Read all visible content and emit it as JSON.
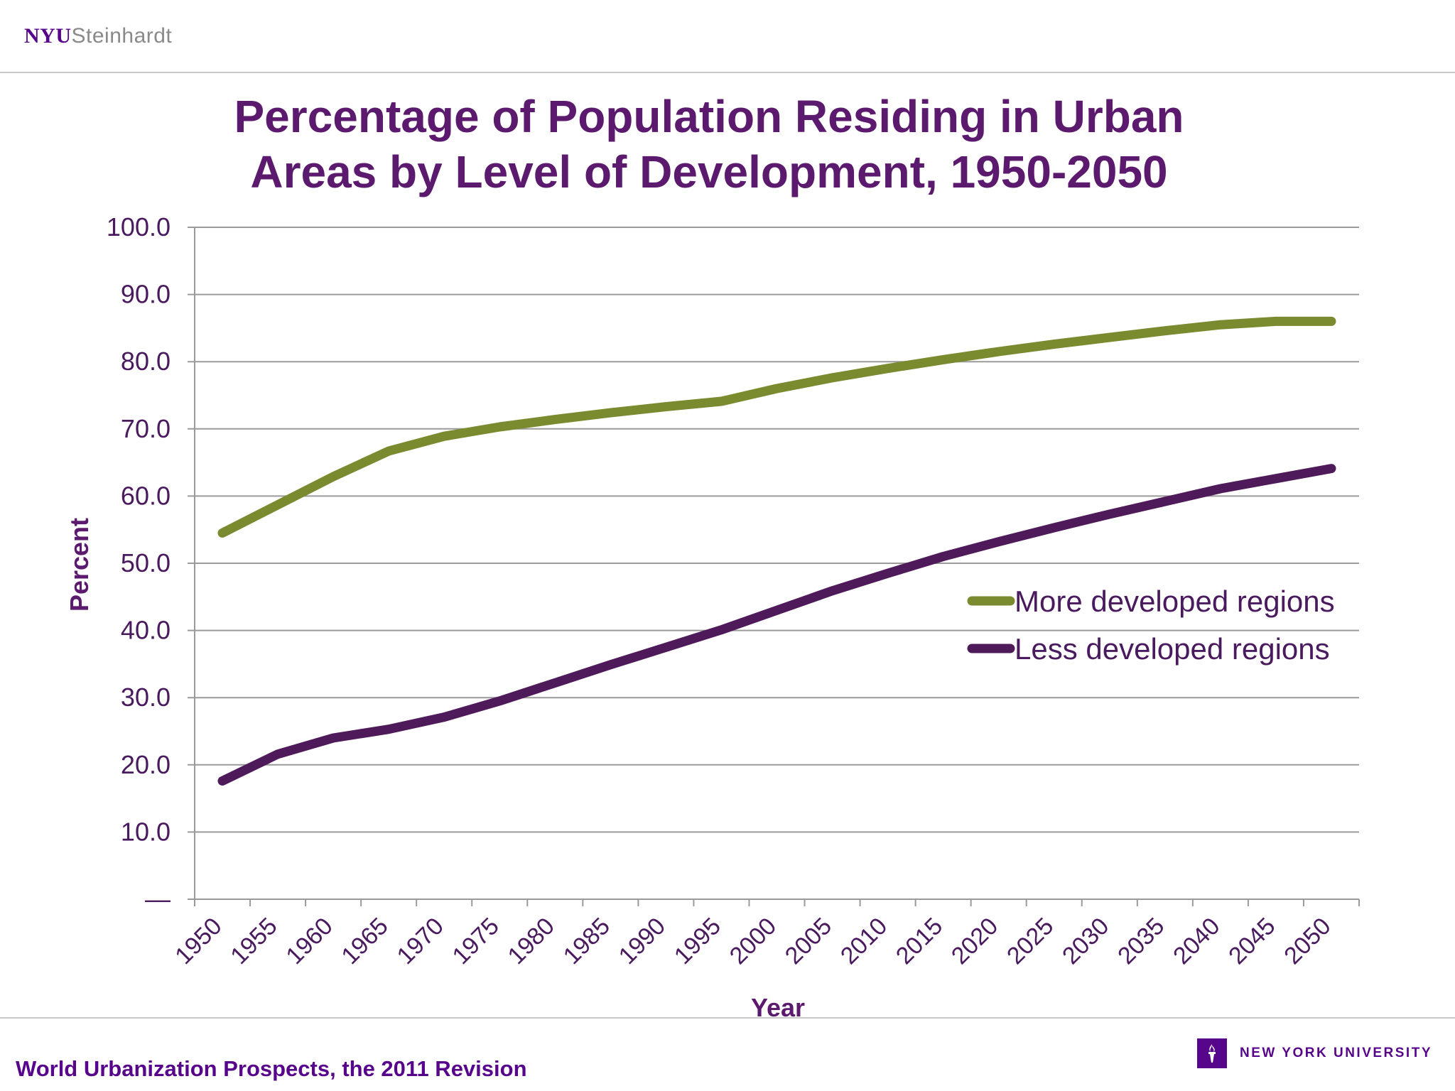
{
  "header": {
    "logo_nyu": "NYU",
    "logo_dept": "Steinhardt"
  },
  "footer": {
    "source": "World Urbanization Prospects, the 2011 Revision",
    "university": "NEW YORK UNIVERSITY"
  },
  "colors": {
    "more_developed": "#7a8a2e",
    "less_developed": "#4f1a5a",
    "text": "#5b1a6e",
    "grid": "#9a9a9a"
  },
  "icons": {
    "footer_logo": "torch-icon"
  },
  "chart_data": {
    "type": "line",
    "title": "Percentage of Population Residing in Urban Areas by Level of Development, 1950-2050",
    "title_lines": [
      "Percentage of Population Residing in Urban",
      "Areas by Level of Development, 1950-2050"
    ],
    "xlabel": "Year",
    "ylabel": "Percent",
    "ylim": [
      0,
      100
    ],
    "yticks": [
      "—",
      "10.0",
      "20.0",
      "30.0",
      "40.0",
      "50.0",
      "60.0",
      "70.0",
      "80.0",
      "90.0",
      "100.0"
    ],
    "categories": [
      "1950",
      "1955",
      "1960",
      "1965",
      "1970",
      "1975",
      "1980",
      "1985",
      "1990",
      "1995",
      "2000",
      "2005",
      "2010",
      "2015",
      "2020",
      "2025",
      "2030",
      "2035",
      "2040",
      "2045",
      "2050"
    ],
    "grid": true,
    "legend": "right-middle",
    "series": [
      {
        "name": "More developed regions",
        "color": "#7a8a2e",
        "values": [
          54.5,
          58.7,
          62.9,
          66.7,
          68.9,
          70.3,
          71.4,
          72.4,
          73.3,
          74.1,
          76.0,
          77.6,
          79.0,
          80.3,
          81.5,
          82.6,
          83.6,
          84.6,
          85.5,
          86.0,
          86.0
        ]
      },
      {
        "name": "Less developed regions",
        "color": "#4f1a5a",
        "values": [
          17.6,
          21.6,
          24.0,
          25.3,
          27.1,
          29.5,
          32.2,
          34.9,
          37.5,
          40.1,
          43.0,
          45.9,
          48.5,
          51.0,
          53.2,
          55.3,
          57.3,
          59.2,
          61.1,
          62.6,
          64.1
        ]
      }
    ]
  }
}
